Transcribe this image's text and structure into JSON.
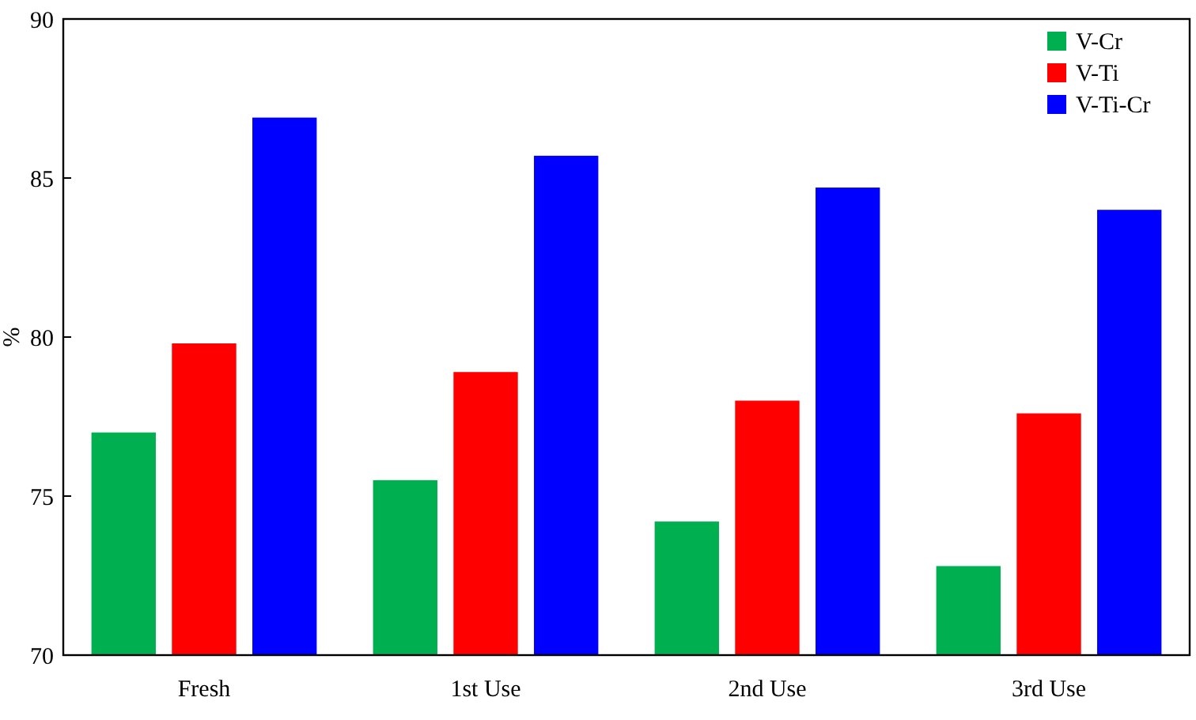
{
  "chart_data": {
    "type": "bar",
    "ylabel": "%",
    "categories": [
      "Fresh",
      "1st Use",
      "2nd Use",
      "3rd Use"
    ],
    "series": [
      {
        "name": "V-Cr",
        "color": "#00b050",
        "values": [
          77.0,
          75.5,
          74.2,
          72.8
        ]
      },
      {
        "name": "V-Ti",
        "color": "#ff0000",
        "values": [
          79.8,
          78.9,
          78.0,
          77.6
        ]
      },
      {
        "name": "V-Ti-Cr",
        "color": "#0000ff",
        "values": [
          86.9,
          85.7,
          84.7,
          84.0
        ]
      }
    ],
    "ylim": [
      70,
      90
    ],
    "yticks": [
      70,
      75,
      80,
      85,
      90
    ],
    "grid": false,
    "legend": "top right"
  }
}
